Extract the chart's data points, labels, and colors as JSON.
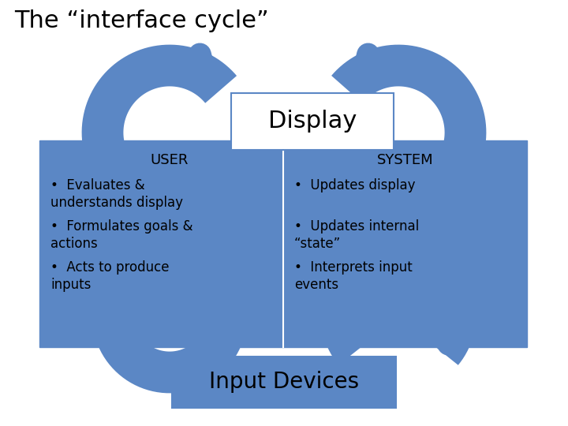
{
  "title": "The “interface cycle”",
  "title_fontsize": 22,
  "bg_color": "#ffffff",
  "blue_color": "#5b87c5",
  "display_label": "Display",
  "input_label": "Input Devices",
  "user_label": "USER",
  "system_label": "SYSTEM",
  "user_bullets": [
    "Evaluates &\nunderstands display",
    "Formulates goals &\nactions",
    "Acts to produce\ninputs"
  ],
  "system_bullets": [
    "Updates display",
    "Updates internal\n“state”",
    "Interprets input\nevents"
  ]
}
